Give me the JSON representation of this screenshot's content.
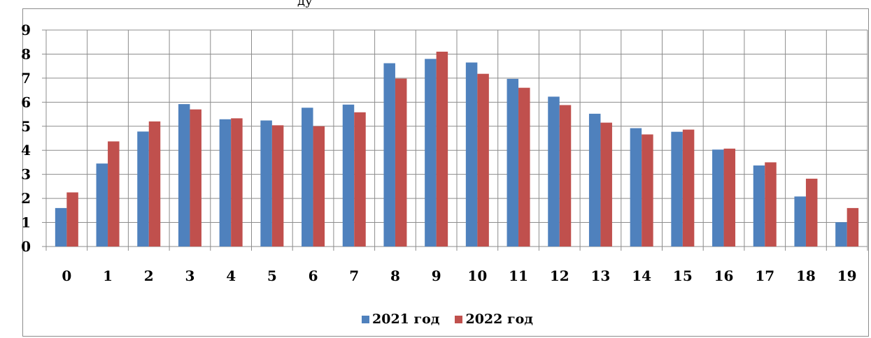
{
  "clipped_title": "ду",
  "chart_data": {
    "type": "bar",
    "categories": [
      "0",
      "1",
      "2",
      "3",
      "4",
      "5",
      "6",
      "7",
      "8",
      "9",
      "10",
      "11",
      "12",
      "13",
      "14",
      "15",
      "16",
      "17",
      "18",
      "19"
    ],
    "series": [
      {
        "name": "2021 год",
        "color": "#4f81bd",
        "values": [
          1.6,
          3.45,
          4.78,
          5.92,
          5.29,
          5.24,
          5.77,
          5.9,
          7.62,
          7.8,
          7.65,
          6.97,
          6.23,
          5.52,
          4.92,
          4.77,
          4.03,
          3.37,
          2.08,
          1.01
        ]
      },
      {
        "name": "2022 год",
        "color": "#c0504d",
        "values": [
          2.25,
          4.37,
          5.2,
          5.7,
          5.33,
          5.04,
          5.0,
          5.58,
          6.98,
          8.1,
          7.18,
          6.6,
          5.88,
          5.15,
          4.66,
          4.86,
          4.07,
          3.5,
          2.82,
          1.6
        ]
      }
    ],
    "yticks": [
      "0",
      "1",
      "2",
      "3",
      "4",
      "5",
      "6",
      "7",
      "8",
      "9"
    ],
    "ylim": [
      0,
      9
    ],
    "grid": true,
    "legend_position": "bottom"
  }
}
